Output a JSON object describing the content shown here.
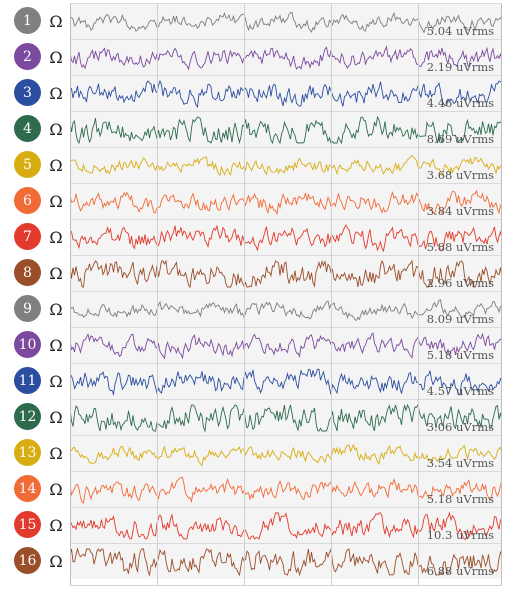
{
  "channels": [
    {
      "number": "1",
      "rms": "5.04 uVrms",
      "color": "#808080",
      "trace_color": "#7d7d7d"
    },
    {
      "number": "2",
      "rms": "2.19 uVrms",
      "color": "#7b4a9e",
      "trace_color": "#7b4a9e"
    },
    {
      "number": "3",
      "rms": "4.46 uVrms",
      "color": "#2c4ea0",
      "trace_color": "#2c4ea0"
    },
    {
      "number": "4",
      "rms": "8.69 uVrms",
      "color": "#2e6b4e",
      "trace_color": "#2e6b4e"
    },
    {
      "number": "5",
      "rms": "3.68 uVrms",
      "color": "#d8ad12",
      "trace_color": "#d8ad12"
    },
    {
      "number": "6",
      "rms": "3.84 uVrms",
      "color": "#f26a35",
      "trace_color": "#f26a35"
    },
    {
      "number": "7",
      "rms": "5.88 uVrms",
      "color": "#e23a2d",
      "trace_color": "#e23a2d"
    },
    {
      "number": "8",
      "rms": "2.96 uVrms",
      "color": "#9a4e2a",
      "trace_color": "#9a4e2a"
    },
    {
      "number": "9",
      "rms": "8.09 uVrms",
      "color": "#808080",
      "trace_color": "#7d7d7d"
    },
    {
      "number": "10",
      "rms": "5.18 uVrms",
      "color": "#7b4a9e",
      "trace_color": "#7b4a9e"
    },
    {
      "number": "11",
      "rms": "4.57 uVrms",
      "color": "#2c4ea0",
      "trace_color": "#2c4ea0"
    },
    {
      "number": "12",
      "rms": "3.06 uVrms",
      "color": "#2e6b4e",
      "trace_color": "#2e6b4e"
    },
    {
      "number": "13",
      "rms": "3.54 uVrms",
      "color": "#d8ad12",
      "trace_color": "#d8ad12"
    },
    {
      "number": "14",
      "rms": "5.18 uVrms",
      "color": "#f26a35",
      "trace_color": "#f26a35"
    },
    {
      "number": "15",
      "rms": "10.3 uVrms",
      "color": "#e23a2d",
      "trace_color": "#e23a2d"
    },
    {
      "number": "16",
      "rms": "6.88 uVrms",
      "color": "#9a4e2a",
      "trace_color": "#9a4e2a"
    }
  ],
  "impedance_symbol": "Ω"
}
